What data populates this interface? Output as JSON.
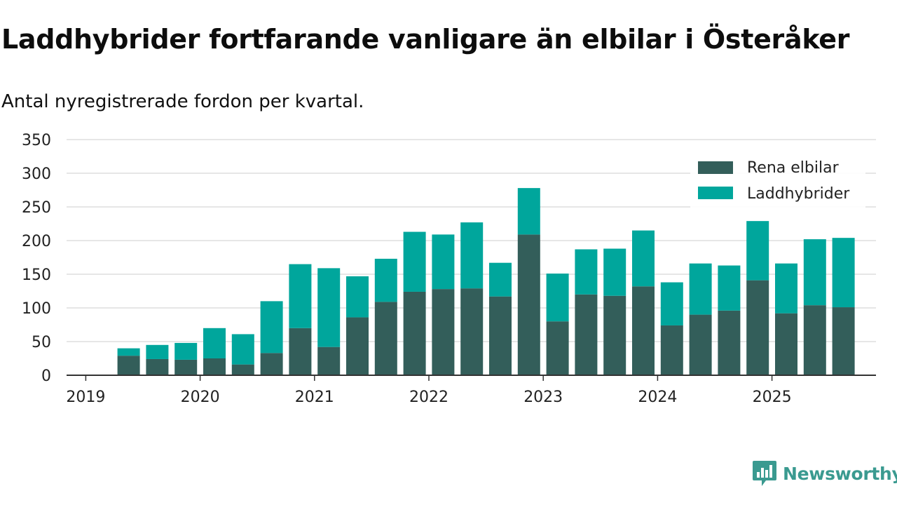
{
  "colors": {
    "elbil": "#335e5a",
    "laddhybrid": "#00a69c",
    "grid": "#dddddd",
    "axis": "#333333",
    "brand": "#3a9a90"
  },
  "brand": {
    "name": "Newsworthy"
  },
  "chart_data": {
    "type": "bar",
    "stacked": true,
    "title": "Laddhybrider fortfarande vanligare än elbilar i Österåker",
    "subtitle": "Antal nyregistrerade fordon per kvartal.",
    "xlabel": "",
    "ylabel": "",
    "ylim": [
      0,
      350
    ],
    "yticks": [
      0,
      50,
      100,
      150,
      200,
      250,
      300,
      350
    ],
    "year_ticks": [
      "2019",
      "2020",
      "2021",
      "2022",
      "2023",
      "2024",
      "2025"
    ],
    "categories": [
      "2019 Q2",
      "2019 Q3",
      "2019 Q4",
      "2020 Q1",
      "2020 Q2",
      "2020 Q3",
      "2020 Q4",
      "2021 Q1",
      "2021 Q2",
      "2021 Q3",
      "2021 Q4",
      "2022 Q1",
      "2022 Q2",
      "2022 Q3",
      "2022 Q4",
      "2023 Q1",
      "2023 Q2",
      "2023 Q3",
      "2023 Q4",
      "2024 Q1",
      "2024 Q2",
      "2024 Q3",
      "2024 Q4",
      "2025 Q1",
      "2025 Q2",
      "2025 Q3"
    ],
    "legend_position": "top-right",
    "grid": true,
    "series": [
      {
        "name": "Rena elbilar",
        "values": [
          29,
          24,
          23,
          25,
          16,
          33,
          70,
          42,
          86,
          109,
          124,
          128,
          129,
          117,
          209,
          80,
          120,
          118,
          132,
          74,
          90,
          96,
          141,
          92,
          104,
          101
        ]
      },
      {
        "name": "Laddhybrider",
        "values": [
          11,
          21,
          25,
          45,
          45,
          77,
          95,
          117,
          61,
          64,
          89,
          81,
          98,
          50,
          69,
          71,
          67,
          70,
          83,
          64,
          76,
          67,
          88,
          74,
          98,
          103
        ]
      }
    ]
  }
}
